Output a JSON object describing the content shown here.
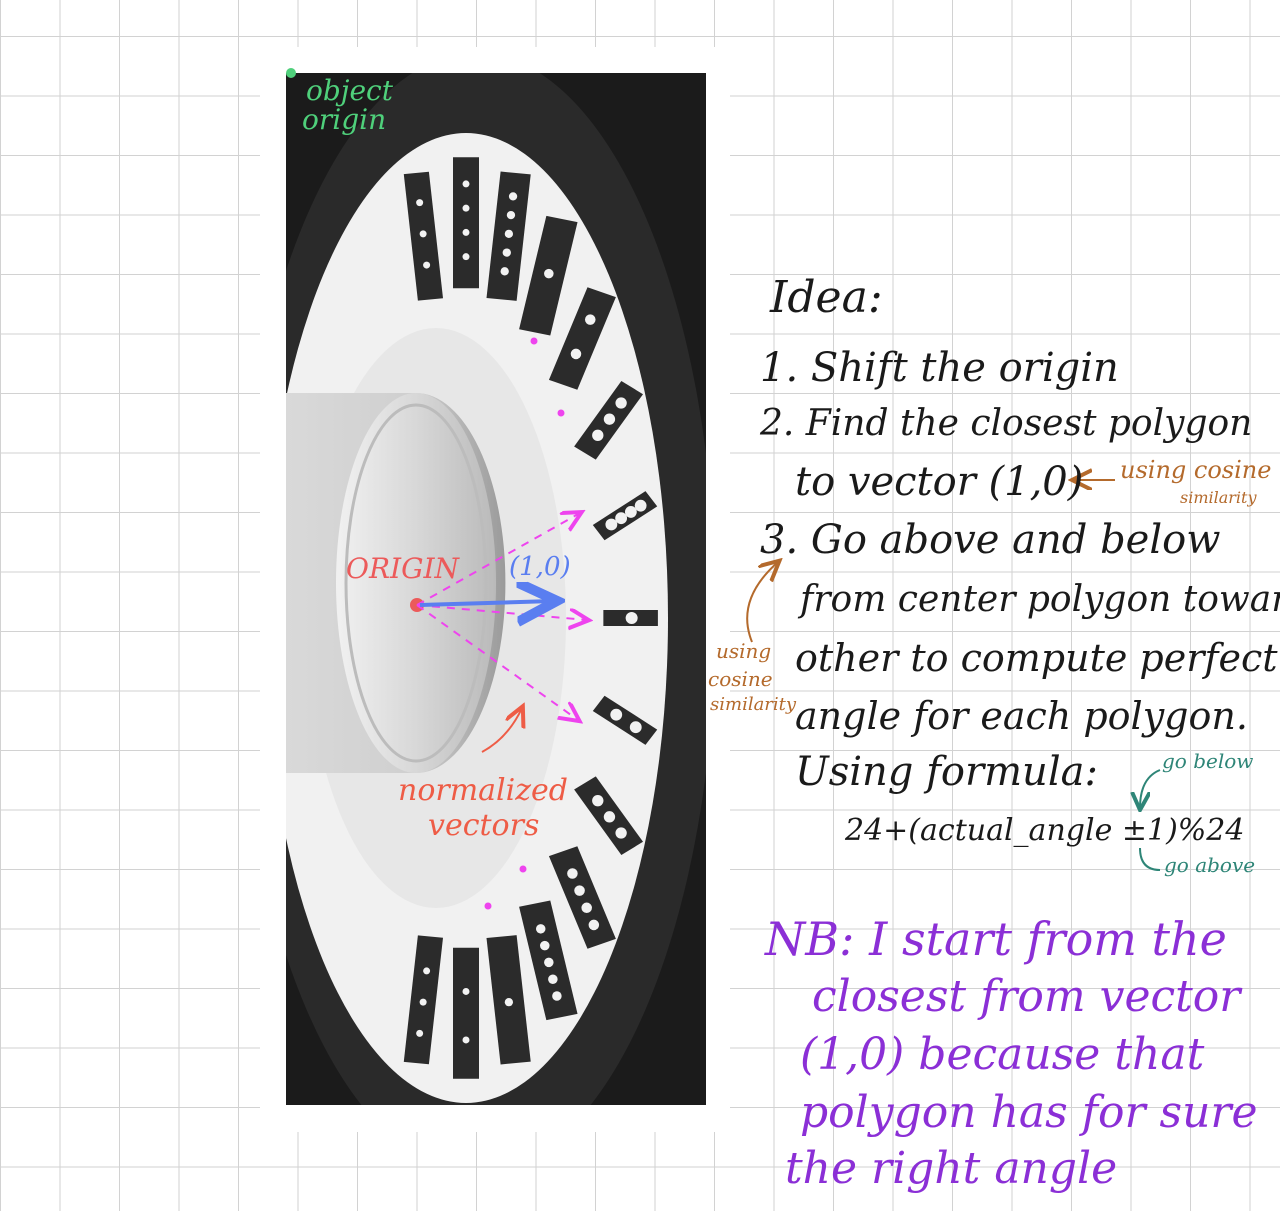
{
  "photo_notes": {
    "object_origin": [
      "object",
      "origin"
    ],
    "origin_label": "ORIGIN",
    "vector_label": "(1,0)",
    "normalized_vectors": [
      "normalized",
      "vectors"
    ]
  },
  "idea_notes": {
    "title": "Idea:",
    "step1": "1. Shift the origin",
    "step2_line1": "2. Find the closest polygon",
    "step2_line2": "to vector (1,0)",
    "step2_annotation": [
      "using cosine",
      "similarity"
    ],
    "step3_line1": "3. Go above and below",
    "step3_line2": "from center polygon toward",
    "step3_line3": "other to compute perfect",
    "step3_line4": "angle for each polygon.",
    "step3_line5": "Using formula:",
    "formula": "24+(actual_angle ±1)%24",
    "formula_above_note": "go below",
    "formula_below_note": "go above",
    "left_annotation": [
      "using",
      "cosine",
      "similarity"
    ]
  },
  "nb_note": {
    "line1": "NB: I start from the",
    "line2": "closest from vector",
    "line3": "(1,0) because that",
    "line4": "polygon has for sure",
    "line5": "the right angle"
  },
  "colors": {
    "object_origin": "#4fd07b",
    "origin": "#ec5a5a",
    "vector": "#5a7ef0",
    "normalized": "#ee5c46",
    "dashed_arrows": "#ee44ee",
    "cosine_note": "#b46a2c",
    "teal_note": "#2e8577",
    "nb": "#8b2fd6"
  }
}
